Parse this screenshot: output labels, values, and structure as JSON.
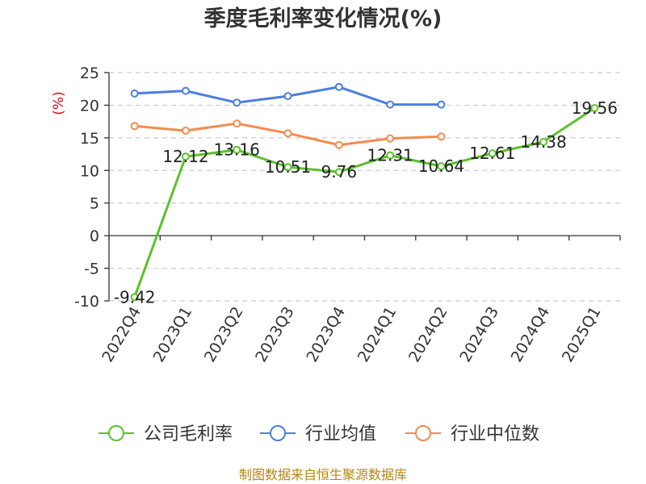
{
  "chart_data": {
    "type": "line",
    "title": "季度毛利率变化情况(%)",
    "ylabel": "(%)",
    "xlabel": "",
    "ylim": [
      -10,
      25
    ],
    "yticks": [
      25,
      20,
      15,
      10,
      5,
      0,
      -5,
      -10
    ],
    "categories": [
      "2022Q4",
      "2023Q1",
      "2023Q2",
      "2023Q3",
      "2023Q4",
      "2024Q1",
      "2024Q2",
      "2024Q3",
      "2024Q4",
      "2025Q1"
    ],
    "grid": true,
    "legend_position": "bottom",
    "series": [
      {
        "name": "公司毛利率",
        "color": "#5bc22a",
        "values": [
          -9.42,
          12.12,
          13.16,
          10.51,
          9.76,
          12.31,
          10.64,
          12.61,
          14.38,
          19.56
        ],
        "labels": [
          "-9.42",
          "12.12",
          "13.16",
          "10.51",
          "9.76",
          "12.31",
          "10.64",
          "12.61",
          "14.38",
          "19.56"
        ]
      },
      {
        "name": "行业均值",
        "color": "#4a7fdc",
        "values": [
          21.8,
          22.2,
          20.4,
          21.4,
          22.8,
          20.1,
          20.1,
          null,
          null,
          null
        ]
      },
      {
        "name": "行业中位数",
        "color": "#f58a4e",
        "values": [
          16.8,
          16.1,
          17.2,
          15.7,
          13.9,
          14.9,
          15.2,
          null,
          null,
          null
        ]
      }
    ]
  },
  "footer": {
    "source": "制图数据来自恒生聚源数据库"
  }
}
